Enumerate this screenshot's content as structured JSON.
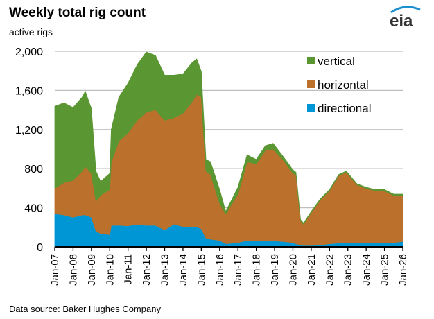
{
  "title": "Weekly total rig count",
  "unit_label": "active rigs",
  "source": "Data source: Baker Hughes Company",
  "logo_text": "eia",
  "chart_data": {
    "type": "area",
    "stacked": true,
    "title": "Weekly total rig count",
    "ylabel": "active rigs",
    "xlabel": "",
    "ylim": [
      0,
      2000
    ],
    "yticks": [
      0,
      400,
      800,
      1200,
      1600,
      2000
    ],
    "ytick_labels": [
      "0",
      "400",
      "800",
      "1,200",
      "1,600",
      "2,000"
    ],
    "xlim": [
      "2007-01",
      "2026-01"
    ],
    "xtick_labels": [
      "Jan-07",
      "Jan-08",
      "Jan-09",
      "Jan-10",
      "Jan-11",
      "Jan-12",
      "Jan-13",
      "Jan-14",
      "Jan-15",
      "Jan-16",
      "Jan-17",
      "Jan-18",
      "Jan-19",
      "Jan-20",
      "Jan-21",
      "Jan-22",
      "Jan-23",
      "Jan-24",
      "Jan-25",
      "Jan-26"
    ],
    "grid": "horizontal",
    "legend_position": "top-right",
    "x": [
      "2007-01",
      "2007-07",
      "2008-01",
      "2008-07",
      "2008-09",
      "2009-01",
      "2009-04",
      "2009-07",
      "2010-01",
      "2010-02",
      "2010-07",
      "2011-01",
      "2011-07",
      "2012-01",
      "2012-07",
      "2013-01",
      "2013-07",
      "2014-01",
      "2014-07",
      "2014-10",
      "2015-01",
      "2015-04",
      "2015-07",
      "2016-01",
      "2016-05",
      "2017-01",
      "2017-07",
      "2018-01",
      "2018-07",
      "2018-12",
      "2019-07",
      "2020-01",
      "2020-03",
      "2020-06",
      "2020-08",
      "2021-01",
      "2021-07",
      "2022-01",
      "2022-07",
      "2022-12",
      "2023-07",
      "2024-01",
      "2024-07",
      "2025-01",
      "2025-07",
      "2026-01"
    ],
    "series": [
      {
        "name": "directional",
        "color": "#0096d6",
        "values": [
          338,
          326,
          303,
          326,
          326,
          303,
          161,
          137,
          125,
          220,
          220,
          215,
          232,
          220,
          220,
          173,
          232,
          208,
          208,
          208,
          184,
          90,
          78,
          66,
          31,
          43,
          66,
          66,
          61,
          61,
          54,
          43,
          31,
          19,
          14,
          14,
          19,
          31,
          38,
          43,
          43,
          38,
          43,
          38,
          43,
          54
        ]
      },
      {
        "name": "horizontal",
        "color": "#bb712c",
        "values": [
          260,
          331,
          378,
          449,
          497,
          449,
          307,
          390,
          461,
          650,
          863,
          950,
          1063,
          1158,
          1182,
          1122,
          1087,
          1158,
          1277,
          1352,
          1348,
          685,
          662,
          378,
          307,
          496,
          804,
          780,
          927,
          939,
          828,
          709,
          709,
          248,
          218,
          336,
          461,
          543,
          690,
          721,
          591,
          560,
          531,
          532,
          484,
          468
        ]
      },
      {
        "name": "vertical",
        "color": "#5a9632",
        "values": [
          839,
          816,
          744,
          757,
          768,
          662,
          307,
          142,
          166,
          331,
          449,
          509,
          568,
          615,
          555,
          461,
          437,
          402,
          401,
          362,
          260,
          119,
          130,
          142,
          24,
          71,
          71,
          48,
          47,
          59,
          35,
          35,
          24,
          12,
          12,
          12,
          12,
          12,
          12,
          11,
          11,
          12,
          12,
          16,
          12,
          17
        ]
      }
    ],
    "legend_order": [
      "vertical",
      "horizontal",
      "directional"
    ]
  }
}
